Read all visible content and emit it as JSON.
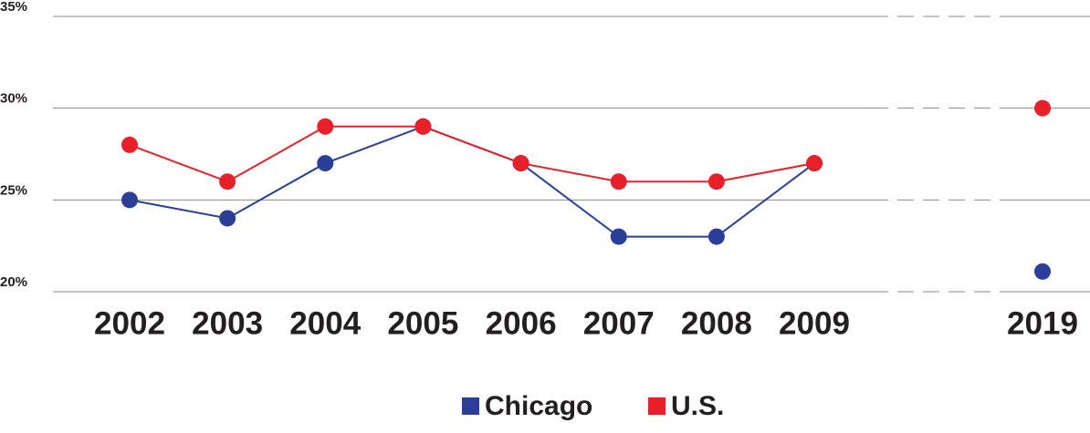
{
  "chart_data": {
    "type": "line",
    "categories": [
      "2002",
      "2003",
      "2004",
      "2005",
      "2006",
      "2007",
      "2008",
      "2009",
      null,
      "2019"
    ],
    "series": [
      {
        "name": "Chicago",
        "color": "#2b3f99",
        "values": [
          25,
          24,
          27,
          29,
          27,
          23,
          23,
          27,
          null,
          21.1
        ]
      },
      {
        "name": "U.S.",
        "color": "#e8202a",
        "values": [
          28,
          26,
          29,
          29,
          27,
          26,
          26,
          27,
          null,
          30
        ]
      }
    ],
    "ylim": [
      20,
      35
    ],
    "yticks": [
      {
        "value": 20,
        "label": "20%"
      },
      {
        "value": 25,
        "label": "25%"
      },
      {
        "value": 30,
        "label": "30%"
      },
      {
        "value": 35,
        "label": "35%"
      }
    ],
    "grid": true
  }
}
